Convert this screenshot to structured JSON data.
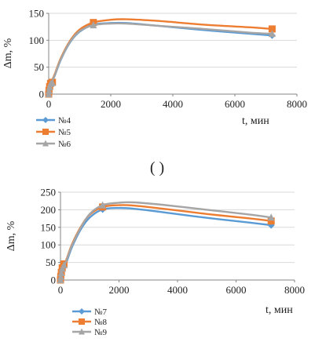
{
  "panel_label": "( )",
  "chart_data": [
    {
      "type": "line",
      "ylabel": "Δm, %",
      "xlabel": "t, мин",
      "xlim": [
        0,
        8000
      ],
      "ylim": [
        0,
        150
      ],
      "x_ticks": [
        0,
        2000,
        4000,
        6000,
        8000
      ],
      "y_ticks": [
        0,
        50,
        100,
        150
      ],
      "grid": "horizontal",
      "legend_position": "bottom-left",
      "series": [
        {
          "name": "№4",
          "color": "#5b9bd5",
          "marker": "diamond",
          "points": [
            [
              0,
              0
            ],
            [
              10,
              5
            ],
            [
              30,
              12
            ],
            [
              60,
              18
            ],
            [
              120,
              20
            ],
            [
              1440,
              129
            ],
            [
              7200,
              109
            ]
          ],
          "curve": [
            [
              0,
              0
            ],
            [
              60,
              16
            ],
            [
              200,
              35
            ],
            [
              400,
              65
            ],
            [
              700,
              97
            ],
            [
              1000,
              116
            ],
            [
              1440,
              129
            ],
            [
              2000,
              132
            ],
            [
              2500,
              132
            ],
            [
              3500,
              127
            ],
            [
              5000,
              119
            ],
            [
              6500,
              112
            ],
            [
              7200,
              109
            ]
          ]
        },
        {
          "name": "№5",
          "color": "#ed7d31",
          "marker": "square",
          "points": [
            [
              0,
              0
            ],
            [
              10,
              7
            ],
            [
              30,
              14
            ],
            [
              60,
              20
            ],
            [
              120,
              22
            ],
            [
              1440,
              133
            ],
            [
              7200,
              121
            ]
          ],
          "curve": [
            [
              0,
              0
            ],
            [
              60,
              18
            ],
            [
              200,
              38
            ],
            [
              400,
              68
            ],
            [
              700,
              100
            ],
            [
              1000,
              120
            ],
            [
              1440,
              133
            ],
            [
              2000,
              138
            ],
            [
              2500,
              139
            ],
            [
              3500,
              136
            ],
            [
              5000,
              129
            ],
            [
              6500,
              124
            ],
            [
              7200,
              121
            ]
          ]
        },
        {
          "name": "№6",
          "color": "#a5a5a5",
          "marker": "triangle",
          "points": [
            [
              0,
              0
            ],
            [
              10,
              6
            ],
            [
              30,
              13
            ],
            [
              60,
              19
            ],
            [
              120,
              21
            ],
            [
              1440,
              128
            ],
            [
              7200,
              112
            ]
          ],
          "curve": [
            [
              0,
              0
            ],
            [
              60,
              17
            ],
            [
              200,
              36
            ],
            [
              400,
              66
            ],
            [
              700,
              98
            ],
            [
              1000,
              117
            ],
            [
              1440,
              128
            ],
            [
              2000,
              131
            ],
            [
              2500,
              131
            ],
            [
              3500,
              127
            ],
            [
              5000,
              121
            ],
            [
              6500,
              114
            ],
            [
              7200,
              112
            ]
          ]
        }
      ]
    },
    {
      "type": "line",
      "ylabel": "Δm, %",
      "xlabel": "t, мин",
      "xlim": [
        0,
        8000
      ],
      "ylim": [
        0,
        250
      ],
      "x_ticks": [
        0,
        2000,
        4000,
        6000,
        8000
      ],
      "y_ticks": [
        0,
        50,
        100,
        150,
        200,
        250
      ],
      "grid": "horizontal",
      "legend_position": "bottom-left",
      "series": [
        {
          "name": "№7",
          "color": "#5b9bd5",
          "marker": "diamond",
          "points": [
            [
              0,
              0
            ],
            [
              10,
              8
            ],
            [
              30,
              18
            ],
            [
              60,
              28
            ],
            [
              120,
              38
            ],
            [
              1440,
              201
            ],
            [
              7200,
              156
            ]
          ],
          "curve": [
            [
              0,
              0
            ],
            [
              60,
              24
            ],
            [
              200,
              50
            ],
            [
              400,
              95
            ],
            [
              700,
              145
            ],
            [
              1000,
              178
            ],
            [
              1440,
              201
            ],
            [
              2000,
              205
            ],
            [
              2500,
              203
            ],
            [
              3500,
              193
            ],
            [
              5000,
              177
            ],
            [
              6500,
              163
            ],
            [
              7200,
              156
            ]
          ]
        },
        {
          "name": "№8",
          "color": "#ed7d31",
          "marker": "square",
          "points": [
            [
              0,
              0
            ],
            [
              10,
              10
            ],
            [
              30,
              22
            ],
            [
              60,
              35
            ],
            [
              120,
              46
            ],
            [
              1440,
              208
            ],
            [
              7200,
              168
            ]
          ],
          "curve": [
            [
              0,
              0
            ],
            [
              60,
              30
            ],
            [
              200,
              58
            ],
            [
              400,
              103
            ],
            [
              700,
              152
            ],
            [
              1000,
              186
            ],
            [
              1440,
              208
            ],
            [
              2000,
              213
            ],
            [
              2500,
              212
            ],
            [
              3500,
              203
            ],
            [
              5000,
              188
            ],
            [
              6500,
              175
            ],
            [
              7200,
              168
            ]
          ]
        },
        {
          "name": "№9",
          "color": "#a5a5a5",
          "marker": "triangle",
          "points": [
            [
              0,
              0
            ],
            [
              10,
              9
            ],
            [
              30,
              20
            ],
            [
              60,
              32
            ],
            [
              120,
              42
            ],
            [
              1440,
              213
            ],
            [
              7200,
              178
            ]
          ],
          "curve": [
            [
              0,
              0
            ],
            [
              60,
              27
            ],
            [
              200,
              55
            ],
            [
              400,
              100
            ],
            [
              700,
              150
            ],
            [
              1000,
              188
            ],
            [
              1440,
              213
            ],
            [
              2000,
              220
            ],
            [
              2500,
              221
            ],
            [
              3500,
              214
            ],
            [
              5000,
              200
            ],
            [
              6500,
              186
            ],
            [
              7200,
              178
            ]
          ]
        }
      ]
    }
  ]
}
